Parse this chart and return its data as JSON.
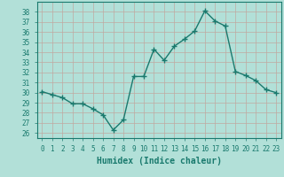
{
  "x": [
    0,
    1,
    2,
    3,
    4,
    5,
    6,
    7,
    8,
    9,
    10,
    11,
    12,
    13,
    14,
    15,
    16,
    17,
    18,
    19,
    20,
    21,
    22,
    23
  ],
  "y": [
    30.1,
    29.8,
    29.5,
    28.9,
    28.9,
    28.4,
    27.8,
    26.3,
    27.3,
    31.6,
    31.6,
    34.3,
    33.2,
    34.6,
    35.3,
    36.1,
    38.1,
    37.1,
    36.6,
    32.1,
    31.7,
    31.2,
    30.3,
    30.0
  ],
  "line_color": "#1a7a6e",
  "marker": "D",
  "marker_size": 2,
  "line_width": 1.0,
  "bg_color": "#b2e0d8",
  "grid_color": "#c8d8d4",
  "tick_color": "#1a7a6e",
  "xlabel": "Humidex (Indice chaleur)",
  "xlabel_fontsize": 7,
  "ylabel_ticks": [
    26,
    27,
    28,
    29,
    30,
    31,
    32,
    33,
    34,
    35,
    36,
    37,
    38
  ],
  "ylim": [
    25.5,
    39.0
  ],
  "xlim": [
    -0.5,
    23.5
  ],
  "xtick_labels": [
    "0",
    "1",
    "2",
    "3",
    "4",
    "5",
    "6",
    "7",
    "8",
    "9",
    "10",
    "11",
    "12",
    "13",
    "14",
    "15",
    "16",
    "17",
    "18",
    "19",
    "20",
    "21",
    "22",
    "23"
  ],
  "tick_fontsize": 5.5
}
